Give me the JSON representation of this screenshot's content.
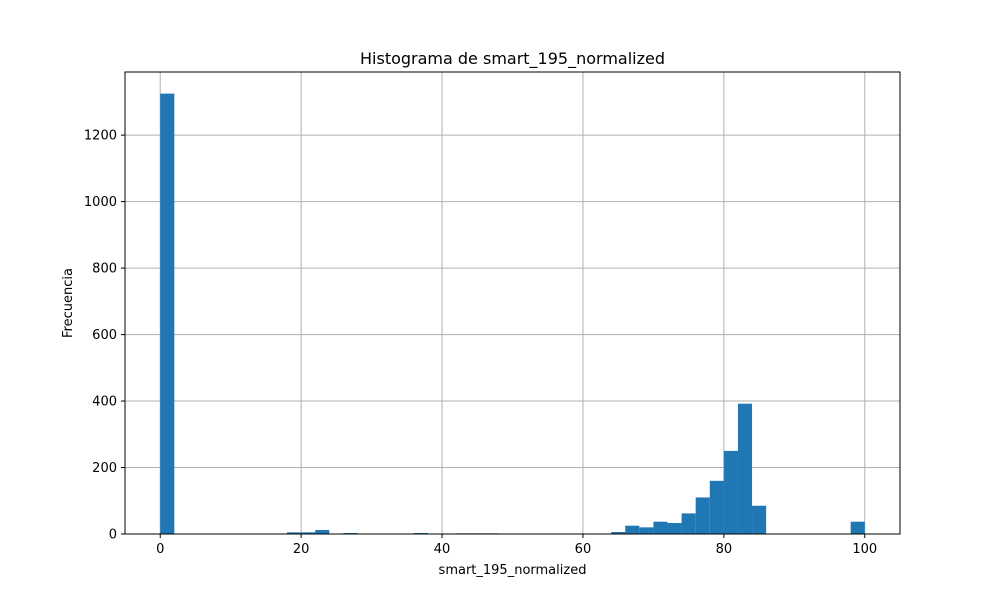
{
  "chart_data": {
    "type": "bar",
    "title": "Histograma de smart_195_normalized",
    "xlabel": "smart_195_normalized",
    "ylabel": "Frecuencia",
    "xlim": [
      -5,
      105
    ],
    "ylim": [
      0,
      1390
    ],
    "grid": true,
    "bin_width": 2,
    "x_ticks": [
      0,
      20,
      40,
      60,
      80,
      100
    ],
    "x_tick_labels": [
      "0",
      "20",
      "40",
      "60",
      "80",
      "100"
    ],
    "y_ticks": [
      0,
      200,
      400,
      600,
      800,
      1000,
      1200
    ],
    "y_tick_labels": [
      "0",
      "200",
      "400",
      "600",
      "800",
      "1000",
      "1200"
    ],
    "bins": [
      {
        "x": 0,
        "count": 1325
      },
      {
        "x": 18,
        "count": 5
      },
      {
        "x": 20,
        "count": 5
      },
      {
        "x": 22,
        "count": 12
      },
      {
        "x": 26,
        "count": 3
      },
      {
        "x": 36,
        "count": 3
      },
      {
        "x": 42,
        "count": 2
      },
      {
        "x": 44,
        "count": 2
      },
      {
        "x": 46,
        "count": 2
      },
      {
        "x": 64,
        "count": 6
      },
      {
        "x": 66,
        "count": 25
      },
      {
        "x": 68,
        "count": 20
      },
      {
        "x": 70,
        "count": 37
      },
      {
        "x": 72,
        "count": 33
      },
      {
        "x": 74,
        "count": 62
      },
      {
        "x": 76,
        "count": 110
      },
      {
        "x": 78,
        "count": 160
      },
      {
        "x": 80,
        "count": 250
      },
      {
        "x": 82,
        "count": 392
      },
      {
        "x": 84,
        "count": 85
      },
      {
        "x": 98,
        "count": 37
      }
    ],
    "bar_color": "#1f77b4",
    "grid_color": "#b0b0b0"
  }
}
